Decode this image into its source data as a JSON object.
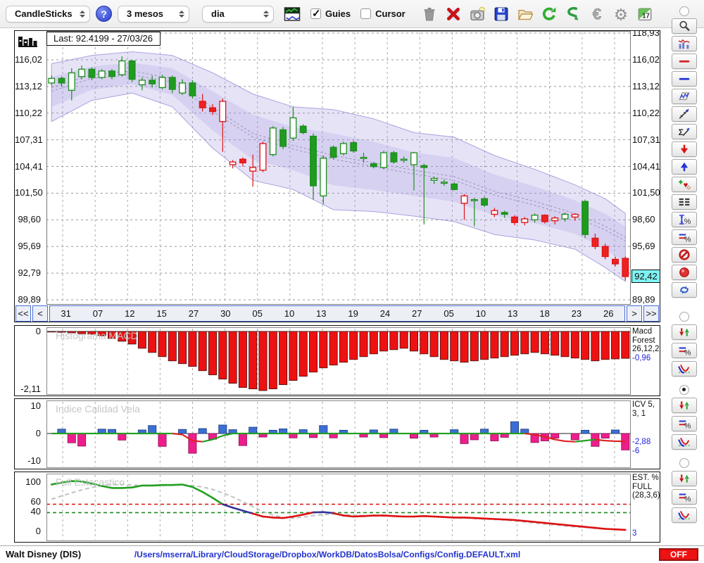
{
  "toolbar": {
    "chart_type_select": "CandleSticks",
    "range_select": "3 mesos",
    "interval_select": "dia",
    "guies_label": "Guies",
    "guies_checked": true,
    "cursor_label": "Cursor",
    "cursor_checked": false,
    "icons": [
      "trash",
      "delete-red-x",
      "snapshot-camera",
      "save-floppy",
      "open-folder",
      "refresh-green",
      "sync-green",
      "euro",
      "settings-gear",
      "calendar-17"
    ],
    "calendar_day": "17"
  },
  "sidebar": {
    "main_radio_selected": false,
    "tools": [
      "zoom-magnifier",
      "indicator-panel",
      "red-hline",
      "blue-hline",
      "channel-zigzag",
      "trend-arrow",
      "sigma-trend",
      "arrow-down-red",
      "arrow-up-blue",
      "add-signal-markers",
      "dashed-list",
      "vertical-range-percent",
      "hlines-percent",
      "forbidden",
      "record-dot",
      "swap-refresh-blue"
    ],
    "groups": [
      {
        "panel": "macd",
        "radio_selected": false,
        "tools": [
          "updown-arrows",
          "hlines-percent",
          "signal-curves"
        ]
      },
      {
        "panel": "icv",
        "radio_selected": true,
        "tools": [
          "updown-arrows",
          "hlines-percent",
          "signal-curves"
        ]
      },
      {
        "panel": "stoch",
        "radio_selected": false,
        "tools": [
          "updown-arrows",
          "hlines-percent",
          "signal-curves"
        ]
      }
    ]
  },
  "nav": {
    "first": "<<",
    "prev": "<",
    "next": ">",
    "last": ">>"
  },
  "statusbar": {
    "symbol": "Walt Disney (DIS)",
    "config_path": "/Users/mserra/Library/CloudStorage/Dropbox/WorkDB/DatosBolsa/Configs/Config.DEFAULT.xml",
    "off_label": "OFF"
  },
  "chart_data": [
    {
      "type": "candlestick",
      "title": "Last: 92.4199 - 27/03/26",
      "last_value": 92.42,
      "last_label": "92,42",
      "y_tick_labels": [
        "118,93",
        "116,02",
        "113,12",
        "110,22",
        "107,31",
        "104,41",
        "101,50",
        "98,60",
        "95,69",
        "92,79",
        "89,89"
      ],
      "y_tick_values": [
        118.93,
        116.02,
        113.12,
        110.22,
        107.31,
        104.41,
        101.5,
        98.6,
        95.69,
        92.79,
        89.89
      ],
      "dates": [
        "31",
        "07",
        "12",
        "15",
        "27",
        "30",
        "05",
        "10",
        "13",
        "19",
        "24",
        "27",
        "05",
        "10",
        "13",
        "18",
        "23",
        "26"
      ],
      "candles": [
        [
          113.5,
          114.3,
          113.2,
          114.0,
          "hg"
        ],
        [
          114.0,
          114.2,
          113.1,
          113.5,
          "fg"
        ],
        [
          112.7,
          115.1,
          111.6,
          114.6,
          "hg"
        ],
        [
          114.2,
          115.4,
          113.9,
          115.0,
          "hg"
        ],
        [
          115.0,
          115.2,
          113.8,
          114.1,
          "fg"
        ],
        [
          114.1,
          115.0,
          113.9,
          114.8,
          "hg"
        ],
        [
          114.8,
          115.0,
          113.9,
          114.2,
          "fg"
        ],
        [
          114.4,
          116.4,
          114.2,
          115.9,
          "hg"
        ],
        [
          115.9,
          116.0,
          113.6,
          113.9,
          "fg"
        ],
        [
          113.3,
          114.1,
          112.7,
          113.8,
          "hg"
        ],
        [
          113.8,
          114.3,
          113.0,
          113.4,
          "fg"
        ],
        [
          113.0,
          114.4,
          112.8,
          114.1,
          "hg"
        ],
        [
          114.1,
          114.3,
          112.4,
          112.8,
          "fg"
        ],
        [
          112.4,
          113.9,
          112.2,
          113.5,
          "hg"
        ],
        [
          113.5,
          113.8,
          111.8,
          112.1,
          "fg"
        ],
        [
          111.5,
          112.3,
          110.4,
          110.8,
          "fr"
        ],
        [
          110.8,
          111.2,
          110.0,
          110.4,
          "fr"
        ],
        [
          109.3,
          111.8,
          106.0,
          111.5,
          "hr"
        ],
        [
          104.6,
          105.1,
          104.2,
          104.9,
          "hr"
        ],
        [
          105.2,
          105.4,
          104.4,
          104.8,
          "fr"
        ],
        [
          103.9,
          105.7,
          102.2,
          104.3,
          "hr"
        ],
        [
          104.0,
          107.1,
          103.8,
          106.9,
          "hr"
        ],
        [
          105.7,
          108.8,
          105.5,
          108.6,
          "hg"
        ],
        [
          108.4,
          108.7,
          106.3,
          106.6,
          "fg"
        ],
        [
          107.5,
          110.9,
          107.2,
          109.7,
          "hg"
        ],
        [
          108.8,
          109.0,
          107.9,
          108.1,
          "fg"
        ],
        [
          107.7,
          108.0,
          100.8,
          102.3,
          "fg"
        ],
        [
          101.2,
          105.6,
          100.3,
          105.3,
          "hg"
        ],
        [
          106.5,
          106.7,
          105.2,
          105.4,
          "fg"
        ],
        [
          105.8,
          107.1,
          105.6,
          106.9,
          "hg"
        ],
        [
          107.0,
          107.2,
          105.9,
          106.1,
          "fg"
        ],
        [
          105.3,
          105.9,
          104.8,
          105.4,
          "hg"
        ],
        [
          104.7,
          104.9,
          104.2,
          104.4,
          "fg"
        ],
        [
          104.3,
          106.1,
          104.1,
          105.9,
          "hg"
        ],
        [
          105.9,
          106.1,
          104.7,
          104.9,
          "fg"
        ],
        [
          105.1,
          105.5,
          104.8,
          105.2,
          "hg"
        ],
        [
          104.6,
          106.0,
          101.8,
          105.9,
          "hg"
        ],
        [
          104.5,
          104.7,
          98.1,
          104.3,
          "fg"
        ],
        [
          103.1,
          103.3,
          102.5,
          102.9,
          "hg"
        ],
        [
          102.7,
          103.0,
          102.3,
          102.7,
          "hg"
        ],
        [
          102.5,
          102.7,
          101.8,
          101.9,
          "fg"
        ],
        [
          101.2,
          101.4,
          98.6,
          100.4,
          "hr"
        ],
        [
          100.8,
          101.0,
          97.9,
          100.7,
          "hg"
        ],
        [
          100.9,
          101.1,
          100.0,
          100.2,
          "fg"
        ],
        [
          99.6,
          99.9,
          98.9,
          99.2,
          "hr"
        ],
        [
          99.2,
          99.6,
          98.8,
          99.4,
          "fg"
        ],
        [
          98.9,
          99.1,
          98.0,
          98.3,
          "fr"
        ],
        [
          98.3,
          98.9,
          98.0,
          98.7,
          "hr"
        ],
        [
          98.6,
          99.3,
          98.3,
          99.1,
          "hg"
        ],
        [
          99.1,
          99.2,
          98.2,
          98.4,
          "fr"
        ],
        [
          98.5,
          99.0,
          98.1,
          98.8,
          "hr"
        ],
        [
          98.7,
          99.4,
          98.4,
          99.2,
          "hg"
        ],
        [
          99.2,
          99.3,
          98.5,
          98.9,
          "hr"
        ],
        [
          100.6,
          100.8,
          96.6,
          97.0,
          "fg"
        ],
        [
          96.6,
          97.1,
          95.4,
          95.7,
          "fr"
        ],
        [
          95.7,
          96.0,
          94.3,
          94.6,
          "fr"
        ],
        [
          94.3,
          94.6,
          93.5,
          93.8,
          "fr"
        ],
        [
          94.4,
          94.6,
          92.0,
          92.42,
          "fr"
        ]
      ],
      "band": {
        "i": [
          0,
          4,
          8,
          12,
          16,
          20,
          24,
          28,
          32,
          36,
          40,
          44,
          48,
          52,
          55,
          57
        ],
        "upper": [
          115.6,
          116.5,
          116.9,
          116.5,
          114.6,
          112.3,
          110.9,
          110.6,
          109.6,
          108.1,
          107.6,
          105.6,
          104.1,
          102.4,
          100.9,
          99.3
        ],
        "lower": [
          109.3,
          111.6,
          112.4,
          110.9,
          106.4,
          102.9,
          101.9,
          99.7,
          99.5,
          99.0,
          98.4,
          97.0,
          96.4,
          95.4,
          93.4,
          91.9
        ],
        "mid": [
          112.6,
          114.0,
          114.4,
          113.6,
          110.4,
          107.6,
          106.3,
          105.2,
          104.4,
          103.6,
          102.9,
          101.3,
          100.2,
          98.9,
          97.5,
          96.3
        ]
      }
    },
    {
      "type": "bar",
      "watermark": "Histograma MACD",
      "y_tick_labels": [
        "0",
        "-2,11"
      ],
      "ylim": [
        -2.11,
        0
      ],
      "right_label": "Macd Forest 26,12,26",
      "right_value": "-0,96",
      "values": [
        -0.02,
        -0.03,
        -0.05,
        -0.08,
        -0.1,
        -0.15,
        -0.25,
        -0.35,
        -0.45,
        -0.6,
        -0.75,
        -0.9,
        -1.05,
        -1.15,
        -1.25,
        -1.4,
        -1.55,
        -1.7,
        -1.85,
        -2.0,
        -2.05,
        -2.11,
        -2.05,
        -1.9,
        -1.75,
        -1.6,
        -1.45,
        -1.3,
        -1.2,
        -1.1,
        -1.0,
        -0.9,
        -0.8,
        -0.7,
        -0.65,
        -0.6,
        -0.7,
        -0.8,
        -0.9,
        -1.0,
        -1.05,
        -1.1,
        -1.05,
        -1.0,
        -0.95,
        -0.9,
        -0.85,
        -0.8,
        -0.75,
        -0.8,
        -0.85,
        -0.9,
        -0.95,
        -1.0,
        -1.05,
        -1.0,
        -0.98,
        -0.96
      ]
    },
    {
      "type": "bar+line",
      "watermark": "Indice Calidad Vela",
      "y_tick_labels": [
        "10",
        "0",
        "-10"
      ],
      "ylim": [
        -10,
        10
      ],
      "right_label": "ICV 5, 3, 1",
      "right_value1": "-2,88",
      "right_value2": "-6",
      "bars": [
        0,
        1.6,
        -3.4,
        -4.6,
        0,
        1.6,
        1.5,
        -2.4,
        0,
        1.3,
        2.9,
        -4.7,
        0,
        1.5,
        -7.2,
        1.8,
        -2.1,
        3.1,
        1.4,
        -4.4,
        2.3,
        -1.3,
        1.2,
        1.7,
        -1.6,
        1.4,
        -1.5,
        2.9,
        -1.6,
        1.2,
        0,
        -1.3,
        1.3,
        -1.5,
        1.6,
        0,
        -1.7,
        1.2,
        -1.3,
        0,
        1.4,
        -3.7,
        -2.3,
        1.6,
        -2.7,
        -1.4,
        4.3,
        1.6,
        -3.3,
        -2.7,
        -1.7,
        0,
        -2.3,
        1.2,
        -4.7,
        -1.7,
        1.3,
        -6.0
      ],
      "line": [
        0,
        0,
        0,
        0,
        0,
        0,
        0,
        0,
        0,
        0,
        0,
        0,
        0,
        -0.4,
        -2.6,
        -3.0,
        -2.2,
        -0.8,
        0,
        0,
        0,
        0,
        0,
        0,
        0,
        0,
        0,
        0,
        0,
        0,
        0,
        0,
        0,
        0,
        0,
        0,
        0,
        0,
        0,
        0,
        0,
        0,
        0,
        0,
        0,
        0,
        0,
        0,
        -0.4,
        -1.2,
        -2.2,
        -2.8,
        -3.0,
        -2.6,
        -2.2,
        -2.6,
        -2.8,
        -2.88,
        -2.88
      ]
    },
    {
      "type": "line",
      "watermark": "Full Estocastico",
      "y_tick_labels": [
        "100",
        "60",
        "40",
        "0"
      ],
      "y_tick_values": [
        100,
        60,
        40,
        0
      ],
      "ylim": [
        0,
        100
      ],
      "levels": {
        "upper": 55,
        "lower": 38
      },
      "right_label": "EST. % FULL (28,3,6)",
      "right_value": "3",
      "k": [
        95,
        99,
        102,
        101,
        97,
        92,
        88,
        88,
        89,
        93,
        93,
        94,
        94,
        95,
        90,
        80,
        68,
        55,
        48,
        42,
        36,
        30,
        28,
        27,
        30,
        34,
        38.5,
        39,
        37,
        32,
        30,
        31,
        32,
        32,
        31,
        30,
        30,
        31,
        30,
        29,
        28,
        28,
        27,
        26,
        25,
        24,
        23,
        21,
        19,
        17,
        15,
        13,
        11,
        9,
        7,
        5,
        4,
        3
      ],
      "d": [
        65,
        72,
        78,
        84,
        89,
        93,
        95,
        95,
        94,
        93,
        93,
        93,
        94,
        94,
        93,
        90,
        85,
        78,
        70,
        60,
        50,
        40,
        33,
        28,
        27,
        29,
        32,
        34,
        35,
        34,
        33,
        32,
        31,
        31,
        31,
        30,
        30,
        30,
        30,
        29,
        28,
        27,
        26,
        25,
        24,
        23,
        21,
        19,
        17,
        15,
        13,
        11,
        9,
        8,
        6,
        5,
        4,
        3
      ]
    }
  ]
}
